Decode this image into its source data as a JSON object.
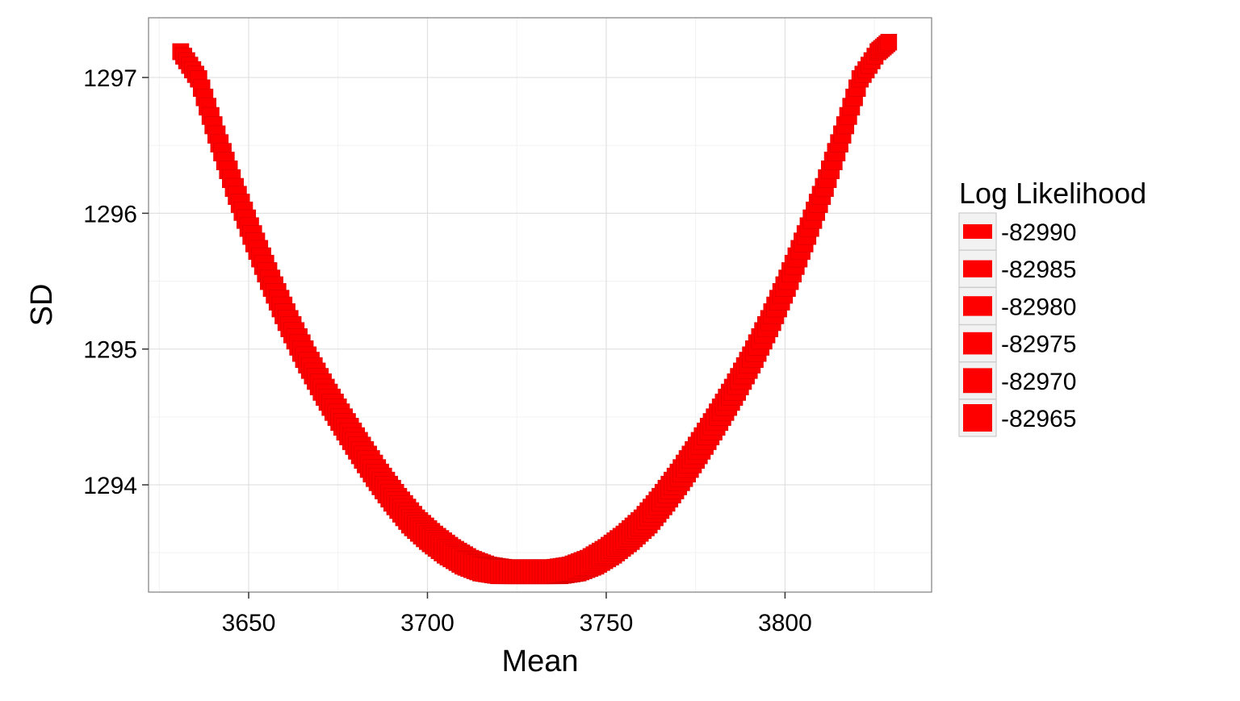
{
  "chart_data": {
    "type": "scatter",
    "title": "",
    "xlabel": "Mean",
    "ylabel": "SD",
    "xlim": [
      3622,
      3841
    ],
    "ylim": [
      1293.21,
      1297.44
    ],
    "x_ticks": [
      3650,
      3700,
      3750,
      3800
    ],
    "y_ticks": [
      1294,
      1295,
      1296,
      1297
    ],
    "x_tick_labels": [
      "3650",
      "3700",
      "3750",
      "3800"
    ],
    "y_tick_labels": [
      "1294",
      "1295",
      "1296",
      "1297"
    ],
    "grid": true,
    "marker": "square",
    "color": "#ff0000",
    "legend": {
      "title": "Log Likelihood",
      "position": "right",
      "entries": [
        "-82990",
        "-82985",
        "-82980",
        "-82975",
        "-82970",
        "-82965"
      ]
    },
    "series": [
      {
        "x": [
          3631,
          3636,
          3641,
          3646,
          3651,
          3656,
          3661,
          3666,
          3671,
          3676,
          3681,
          3686,
          3691,
          3696,
          3701,
          3706,
          3711,
          3716,
          3721,
          3726,
          3731,
          3736,
          3741,
          3746,
          3751,
          3756,
          3761,
          3766,
          3771,
          3776,
          3781,
          3786,
          3791,
          3796,
          3801,
          3806,
          3811,
          3816,
          3821,
          3826,
          3829
        ],
        "y": [
          1297.19,
          1296.99,
          1296.58,
          1296.19,
          1295.84,
          1295.51,
          1295.21,
          1294.94,
          1294.7,
          1294.48,
          1294.27,
          1294.07,
          1293.89,
          1293.73,
          1293.61,
          1293.51,
          1293.43,
          1293.38,
          1293.36,
          1293.36,
          1293.36,
          1293.36,
          1293.38,
          1293.43,
          1293.51,
          1293.61,
          1293.73,
          1293.89,
          1294.07,
          1294.27,
          1294.48,
          1294.7,
          1294.94,
          1295.21,
          1295.51,
          1295.84,
          1296.19,
          1296.58,
          1296.99,
          1297.19,
          1297.26
        ]
      }
    ]
  }
}
